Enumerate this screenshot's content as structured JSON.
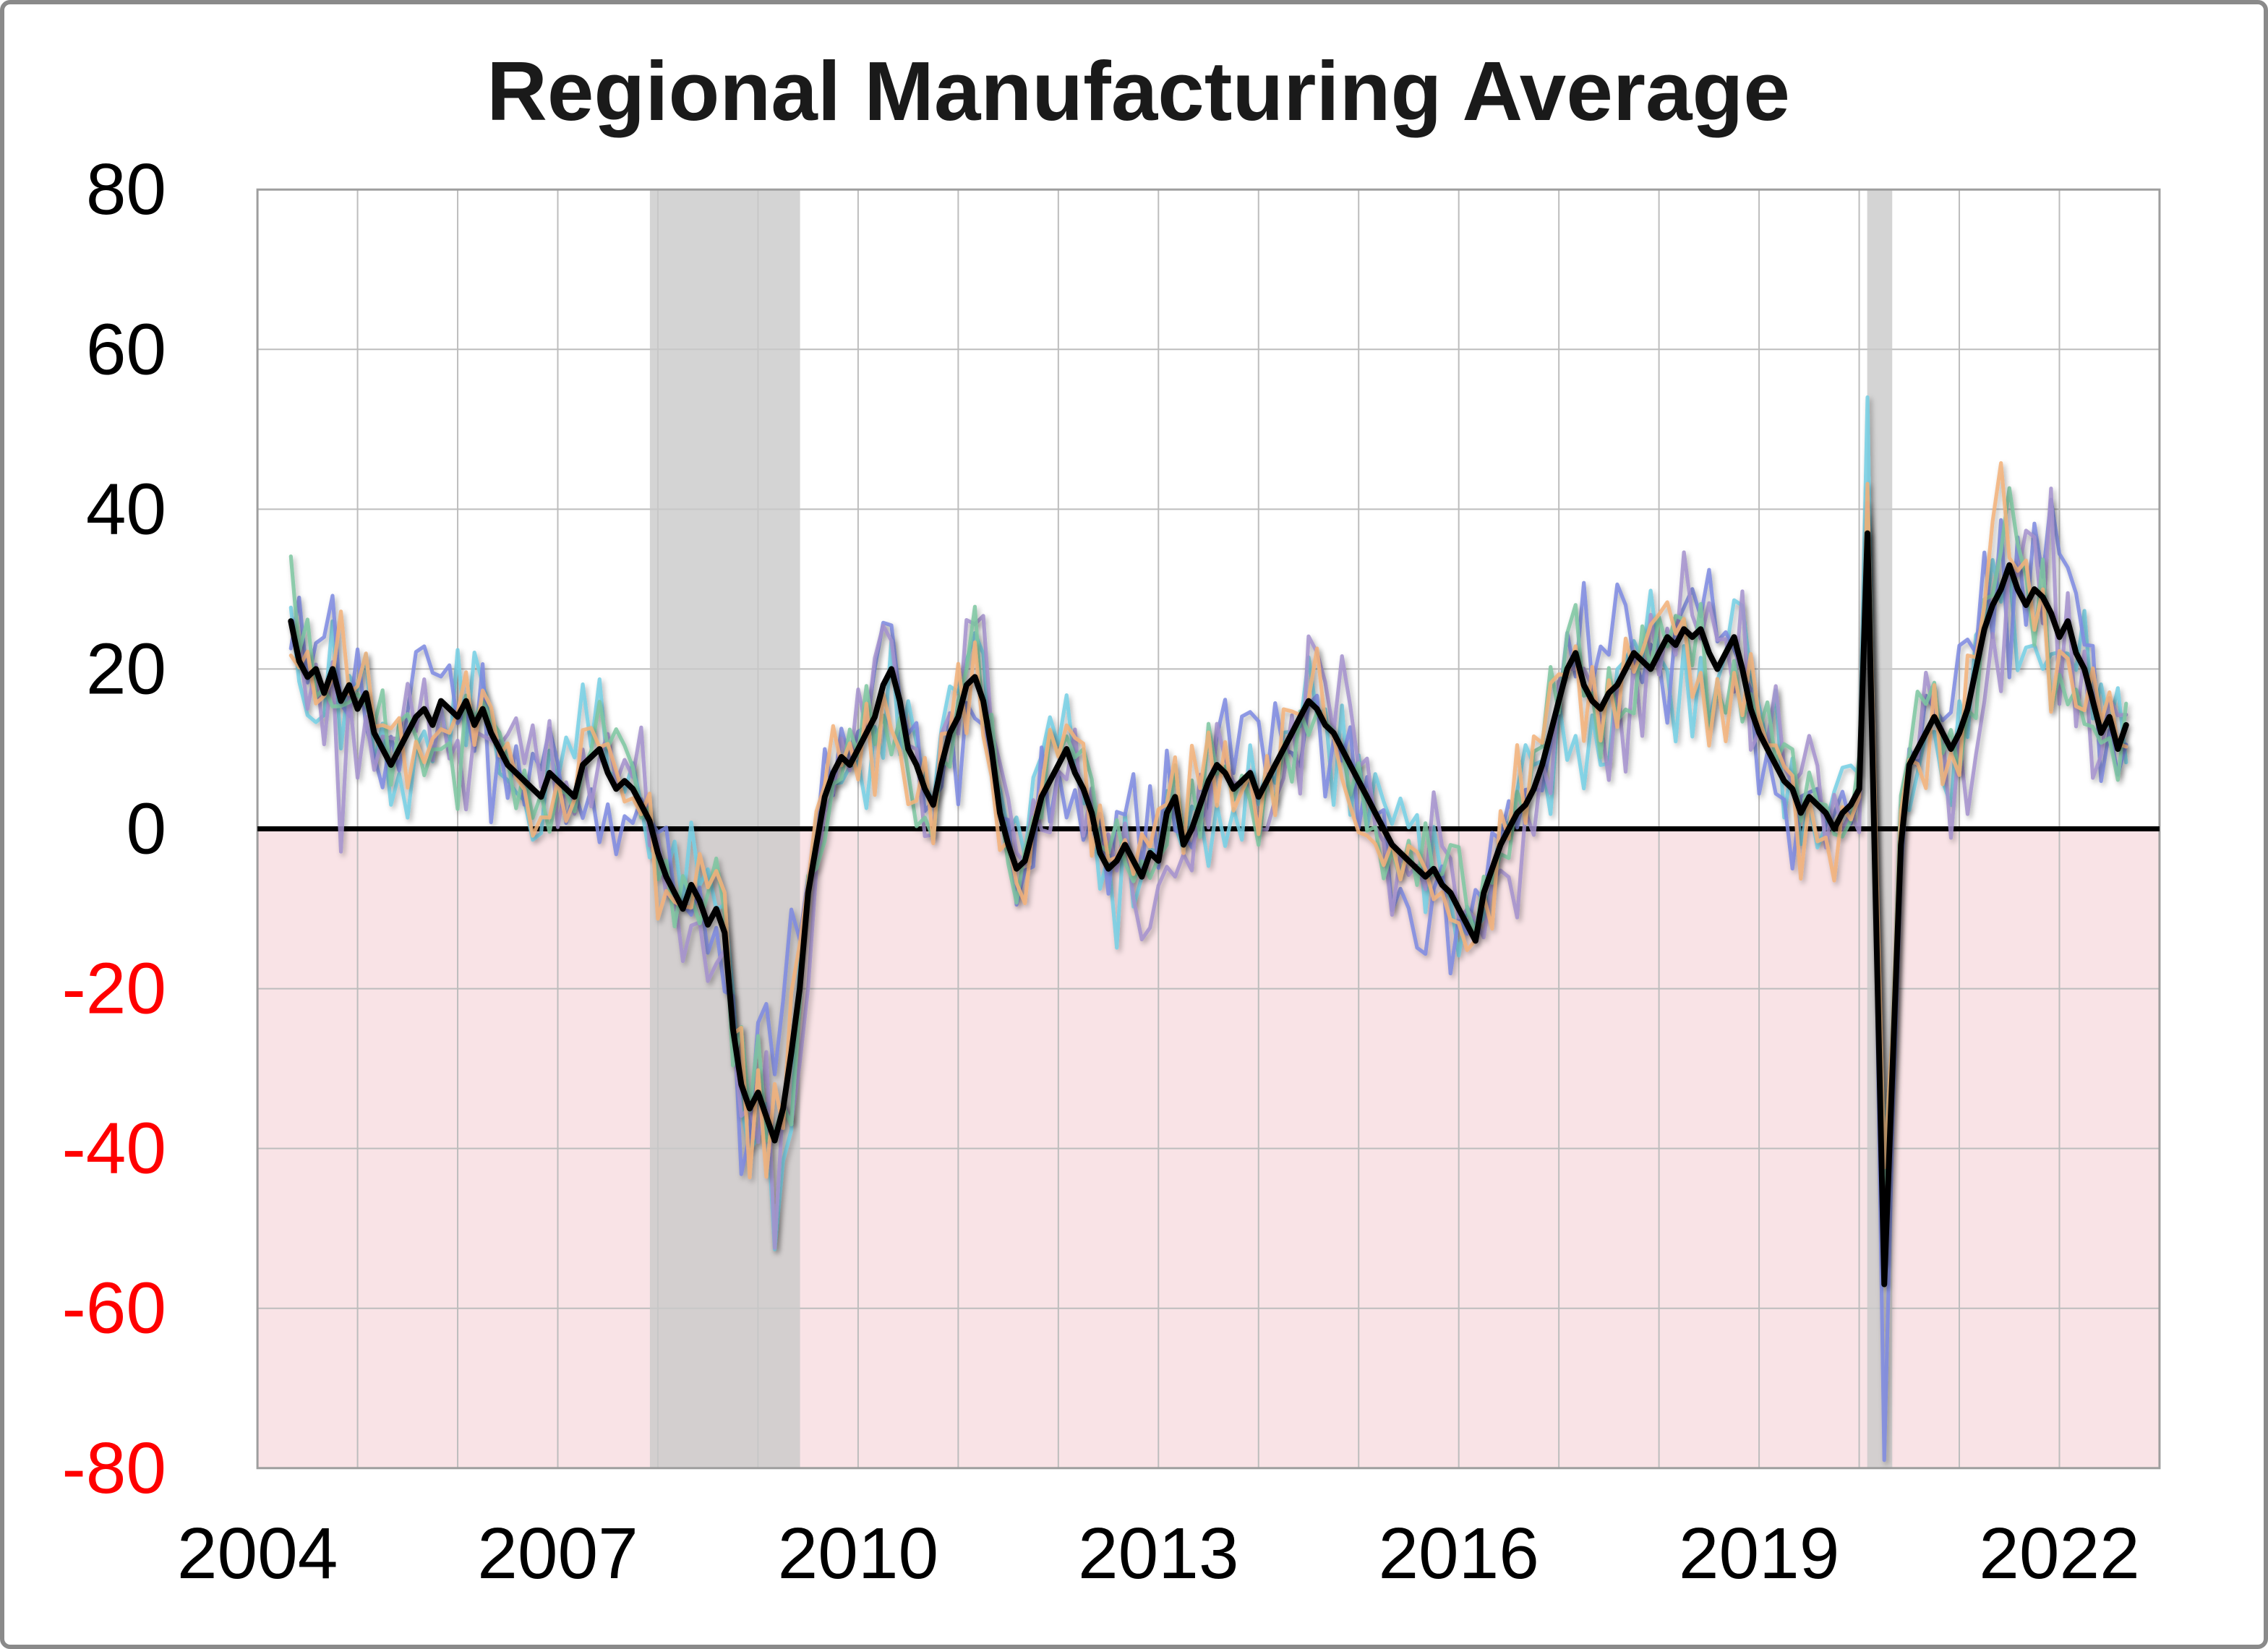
{
  "chart_data": {
    "type": "line",
    "title": "Regional Manufacturing Average",
    "xlabel": "",
    "ylabel": "",
    "xlim": [
      2004,
      2023
    ],
    "ylim": [
      -80,
      80
    ],
    "grid": true,
    "legend_position": "none",
    "x_ticks": [
      2004,
      2007,
      2010,
      2013,
      2016,
      2019,
      2022
    ],
    "y_ticks": [
      80,
      60,
      40,
      20,
      0,
      -20,
      -40,
      -60,
      -80
    ],
    "x_start": 2004.3333,
    "x_step_months": 1,
    "recession_bands": [
      [
        2007.92,
        2009.42
      ],
      [
        2020.08,
        2020.33
      ]
    ],
    "colors": {
      "negative_region": "#f9e3e6",
      "recession_band": "#c9c9c9",
      "negative_tick": "#ff0000",
      "positive_tick": "#000000",
      "grid": "#bdbdbd",
      "plot_border": "#9e9e9e",
      "zero_line": "#000000",
      "average_line": "#000000"
    },
    "average_series": {
      "name": "average",
      "color": "#000000",
      "values": [
        26,
        21,
        19,
        20,
        17,
        20,
        16,
        18,
        15,
        17,
        12,
        10,
        8,
        10,
        12,
        14,
        15,
        13,
        16,
        15,
        14,
        16,
        13,
        15,
        12,
        10,
        8,
        7,
        6,
        5,
        4,
        7,
        6,
        5,
        4,
        8,
        9,
        10,
        7,
        5,
        6,
        5,
        3,
        1,
        -3,
        -6,
        -8,
        -10,
        -7,
        -9,
        -12,
        -10,
        -13,
        -25,
        -32,
        -35,
        -33,
        -36,
        -39,
        -35,
        -28,
        -20,
        -8,
        -2,
        4,
        7,
        9,
        8,
        10,
        12,
        14,
        18,
        20,
        16,
        10,
        8,
        5,
        3,
        8,
        12,
        14,
        18,
        19,
        16,
        10,
        2,
        -2,
        -5,
        -4,
        0,
        4,
        6,
        8,
        10,
        7,
        5,
        2,
        -3,
        -5,
        -4,
        -2,
        -4,
        -6,
        -3,
        -4,
        2,
        4,
        -2,
        0,
        3,
        6,
        8,
        7,
        5,
        6,
        7,
        4,
        6,
        8,
        10,
        12,
        14,
        16,
        15,
        13,
        12,
        10,
        8,
        6,
        4,
        2,
        0,
        -2,
        -3,
        -4,
        -5,
        -6,
        -5,
        -7,
        -8,
        -10,
        -12,
        -14,
        -8,
        -5,
        -2,
        0,
        2,
        3,
        5,
        8,
        12,
        16,
        20,
        22,
        18,
        16,
        15,
        17,
        18,
        20,
        22,
        21,
        20,
        22,
        24,
        23,
        25,
        24,
        25,
        22,
        20,
        22,
        24,
        20,
        15,
        12,
        10,
        8,
        6,
        5,
        2,
        4,
        3,
        2,
        0,
        2,
        3,
        5,
        37,
        -10,
        -57,
        -30,
        -2,
        8,
        10,
        12,
        14,
        12,
        10,
        12,
        15,
        20,
        25,
        28,
        30,
        33,
        30,
        28,
        30,
        29,
        27,
        24,
        26,
        22,
        20,
        16,
        12,
        14,
        10,
        13
      ]
    },
    "regional_series": [
      {
        "name": "regional-1",
        "color": "#74cfe4",
        "seed": 3,
        "amplitude": 6.5
      },
      {
        "name": "regional-2",
        "color": "#7d88e0",
        "seed": 7,
        "amplitude": 7.0
      },
      {
        "name": "regional-3",
        "color": "#a391cc",
        "seed": 12,
        "amplitude": 7.5
      },
      {
        "name": "regional-4",
        "color": "#7cc6a0",
        "seed": 21,
        "amplitude": 5.5
      },
      {
        "name": "regional-5",
        "color": "#f2b078",
        "seed": 34,
        "amplitude": 6.0
      }
    ]
  }
}
